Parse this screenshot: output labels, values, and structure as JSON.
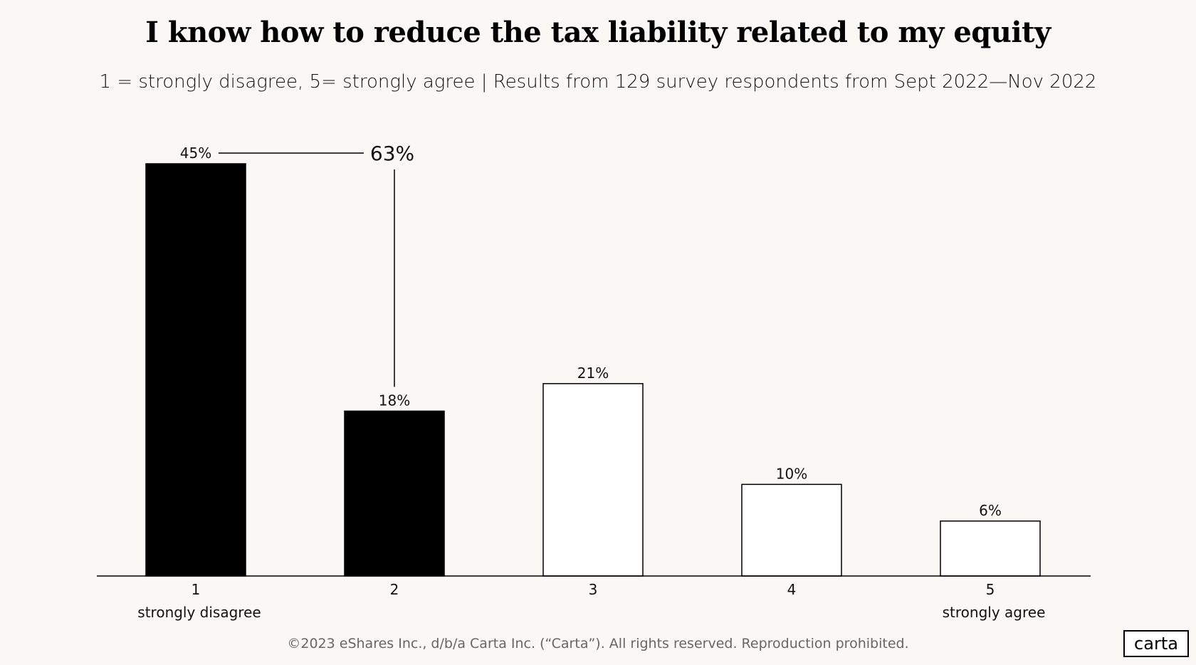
{
  "chart_data": {
    "type": "bar",
    "title": "I know how to reduce the tax liability related to my equity",
    "subtitle": "1 = strongly disagree, 5= strongly agree  |  Results from 129 survey respondents from Sept 2022—Nov 2022",
    "categories": [
      "1",
      "2",
      "3",
      "4",
      "5"
    ],
    "category_sublabels": [
      "strongly disagree",
      "",
      "",
      "",
      "strongly agree"
    ],
    "values": [
      45,
      18,
      21,
      10,
      6
    ],
    "value_labels": [
      "45%",
      "18%",
      "21%",
      "10%",
      "6%"
    ],
    "highlighted": [
      true,
      true,
      false,
      false,
      false
    ],
    "annotation": "63%",
    "ylim": [
      0,
      50
    ],
    "xlabel": "",
    "ylabel": "",
    "grid": false,
    "legend": "none"
  },
  "colors": {
    "background": "#faf8f4",
    "highlight_fill": "#000000",
    "plain_fill": "#ffffff",
    "stroke": "#000000"
  },
  "footer": "©2023 eShares Inc., d/b/a Carta Inc. (“Carta”). All rights reserved. Reproduction prohibited.",
  "logo_text": "carta"
}
